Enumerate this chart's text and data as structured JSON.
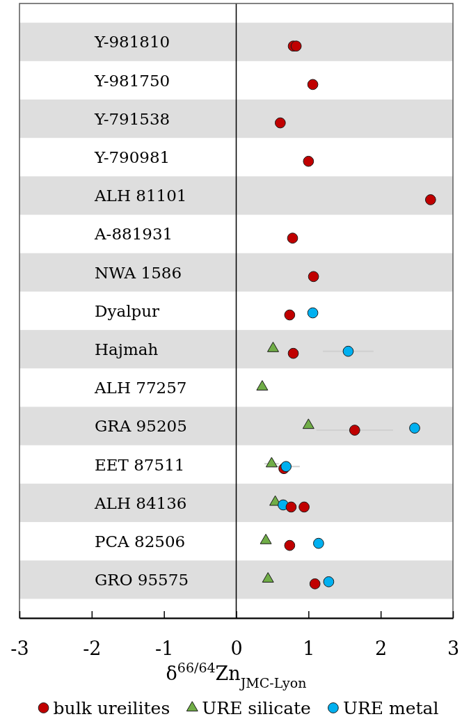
{
  "chart_data": {
    "type": "scatter",
    "orientation": "horizontal",
    "categories": [
      "Y-981810",
      "Y-981750",
      "Y-791538",
      "Y-790981",
      "ALH 81101",
      "A-881931",
      "NWA 1586",
      "Dyalpur",
      "Hajmah",
      "ALH 77257",
      "GRA 95205",
      "EET 87511",
      "ALH 84136",
      "PCA 82506",
      "GRO 95575"
    ],
    "xlabel": "δ$^{66/64}$Zn$_{JMC-Lyon}$",
    "xlim": [
      -3,
      3
    ],
    "xticks": [
      -3,
      -2,
      -1,
      0,
      1,
      2,
      3
    ],
    "legend": "bottom",
    "ref_lines": [
      {
        "axis": "x",
        "value": 0,
        "color": "#000000"
      }
    ],
    "bands": [
      {
        "axis": "y",
        "from": "Y-981810",
        "to": "Y-981810",
        "color": "#dedede"
      },
      {
        "axis": "y",
        "from": "Y-791538",
        "to": "Y-791538",
        "color": "#dedede"
      },
      {
        "axis": "y",
        "from": "ALH 81101",
        "to": "ALH 81101",
        "color": "#dedede"
      },
      {
        "axis": "y",
        "from": "NWA 1586",
        "to": "NWA 1586",
        "color": "#dedede"
      },
      {
        "axis": "y",
        "from": "Hajmah",
        "to": "Hajmah",
        "color": "#dedede"
      },
      {
        "axis": "y",
        "from": "GRA 95205",
        "to": "GRA 95205",
        "color": "#dedede"
      },
      {
        "axis": "y",
        "from": "ALH 84136",
        "to": "ALH 84136",
        "color": "#dedede"
      },
      {
        "axis": "y",
        "from": "GRO 95575",
        "to": "GRO 95575",
        "color": "#dedede"
      }
    ],
    "series": [
      {
        "name": "bulk ureilites",
        "color": "#c00000",
        "marker": "circle",
        "values": [
          0.79,
          1.06,
          0.61,
          1,
          2.69,
          0.78,
          1.07,
          0.74,
          0.79,
          null,
          1.64,
          0.66,
          0.94,
          0.74,
          1.09
        ],
        "errors": [
          null,
          null,
          null,
          null,
          null,
          null,
          null,
          null,
          null,
          null,
          0.53,
          null,
          null,
          null,
          null
        ]
      },
      {
        "name": "URE silicate",
        "color": "#70ad47",
        "marker": "triangle",
        "values": [
          null,
          null,
          null,
          null,
          null,
          null,
          null,
          null,
          0.51,
          0.36,
          1,
          0.49,
          0.54,
          0.41,
          0.44
        ],
        "errors": [
          null,
          null,
          null,
          null,
          null,
          null,
          null,
          null,
          null,
          null,
          null,
          0.1,
          null,
          null,
          null
        ]
      },
      {
        "name": "URE metal",
        "color": "#00b0f0",
        "marker": "circle",
        "values": [
          null,
          null,
          null,
          null,
          null,
          null,
          null,
          1.06,
          1.55,
          null,
          2.47,
          0.69,
          0.65,
          1.14,
          1.28
        ],
        "errors": [
          null,
          null,
          null,
          null,
          null,
          null,
          null,
          null,
          0.35,
          null,
          null,
          0.19,
          null,
          null,
          null
        ]
      },
      {
        "color": "#c00000",
        "marker": "circle",
        "values": [
          0.83,
          null,
          null,
          null,
          null,
          null,
          null,
          null,
          null,
          null,
          null,
          null,
          0.76,
          null,
          null
        ]
      }
    ]
  }
}
